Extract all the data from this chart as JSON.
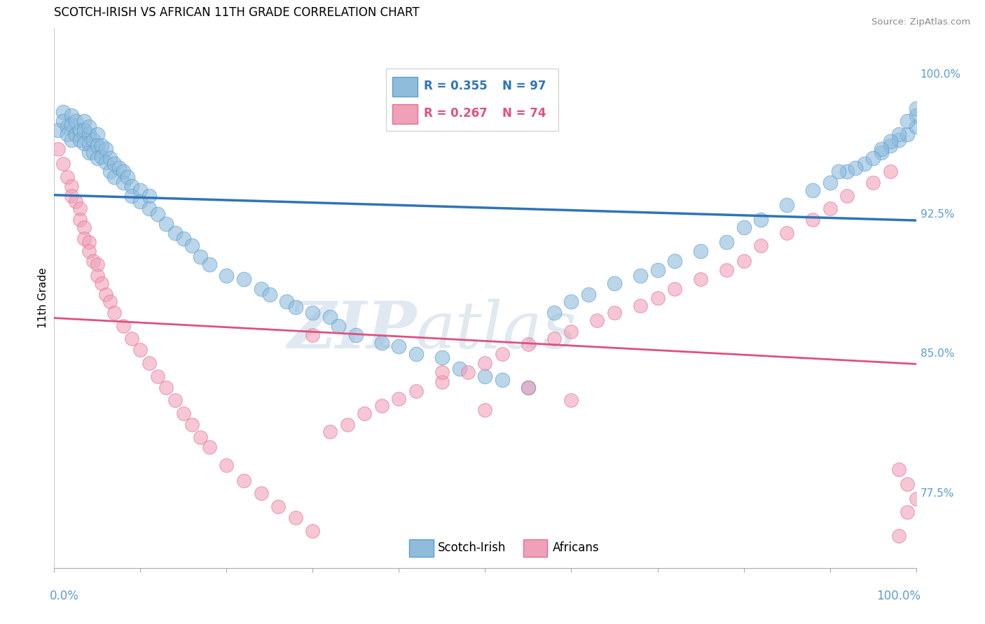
{
  "title": "SCOTCH-IRISH VS AFRICAN 11TH GRADE CORRELATION CHART",
  "source": "Source: ZipAtlas.com",
  "ylabel": "11th Grade",
  "xlim": [
    0.0,
    1.0
  ],
  "ylim": [
    0.735,
    1.025
  ],
  "scotch_irish_color": "#8fbcdb",
  "african_color": "#f0a0b8",
  "scotch_irish_edge": "#5b9bd5",
  "african_edge": "#e07090",
  "trend_blue": "#2E75B6",
  "trend_pink": "#E05080",
  "scotch_irish_R": 0.355,
  "scotch_irish_N": 97,
  "african_R": 0.267,
  "african_N": 74,
  "watermark_zip": "ZIP",
  "watermark_atlas": "atlas",
  "axis_label_color": "#5B9BD5",
  "grid_color": "#cccccc",
  "title_fontsize": 12,
  "right_yticks": [
    1.0,
    0.925,
    0.85,
    0.775
  ],
  "right_ytick_labels": [
    "100.0%",
    "92.5%",
    "85.0%",
    "77.5%"
  ],
  "scotch_x": [
    0.005,
    0.01,
    0.01,
    0.015,
    0.015,
    0.02,
    0.02,
    0.02,
    0.025,
    0.025,
    0.03,
    0.03,
    0.035,
    0.035,
    0.035,
    0.04,
    0.04,
    0.04,
    0.04,
    0.045,
    0.045,
    0.05,
    0.05,
    0.05,
    0.055,
    0.055,
    0.06,
    0.06,
    0.065,
    0.065,
    0.07,
    0.07,
    0.075,
    0.08,
    0.08,
    0.085,
    0.09,
    0.09,
    0.1,
    0.1,
    0.11,
    0.11,
    0.12,
    0.13,
    0.14,
    0.15,
    0.16,
    0.17,
    0.18,
    0.2,
    0.22,
    0.24,
    0.25,
    0.27,
    0.28,
    0.3,
    0.32,
    0.33,
    0.35,
    0.38,
    0.4,
    0.42,
    0.45,
    0.47,
    0.5,
    0.52,
    0.55,
    0.58,
    0.6,
    0.62,
    0.65,
    0.68,
    0.7,
    0.72,
    0.75,
    0.78,
    0.8,
    0.82,
    0.85,
    0.88,
    0.9,
    0.92,
    0.94,
    0.96,
    0.97,
    0.98,
    0.99,
    1.0,
    1.0,
    1.0,
    0.99,
    0.98,
    0.97,
    0.96,
    0.95,
    0.93,
    0.91
  ],
  "scotch_y": [
    0.97,
    0.98,
    0.975,
    0.972,
    0.968,
    0.978,
    0.973,
    0.965,
    0.975,
    0.968,
    0.97,
    0.965,
    0.975,
    0.97,
    0.963,
    0.968,
    0.963,
    0.958,
    0.972,
    0.965,
    0.958,
    0.968,
    0.962,
    0.955,
    0.962,
    0.956,
    0.96,
    0.953,
    0.955,
    0.948,
    0.952,
    0.945,
    0.95,
    0.948,
    0.942,
    0.945,
    0.94,
    0.935,
    0.938,
    0.932,
    0.935,
    0.928,
    0.925,
    0.92,
    0.915,
    0.912,
    0.908,
    0.902,
    0.898,
    0.892,
    0.89,
    0.885,
    0.882,
    0.878,
    0.875,
    0.872,
    0.87,
    0.865,
    0.86,
    0.856,
    0.854,
    0.85,
    0.848,
    0.842,
    0.838,
    0.836,
    0.832,
    0.872,
    0.878,
    0.882,
    0.888,
    0.892,
    0.895,
    0.9,
    0.905,
    0.91,
    0.918,
    0.922,
    0.93,
    0.938,
    0.942,
    0.948,
    0.952,
    0.958,
    0.962,
    0.965,
    0.968,
    0.972,
    0.978,
    0.982,
    0.975,
    0.968,
    0.964,
    0.96,
    0.955,
    0.95,
    0.948
  ],
  "african_x": [
    0.005,
    0.01,
    0.015,
    0.02,
    0.02,
    0.025,
    0.03,
    0.03,
    0.035,
    0.035,
    0.04,
    0.04,
    0.045,
    0.05,
    0.05,
    0.055,
    0.06,
    0.065,
    0.07,
    0.08,
    0.09,
    0.1,
    0.11,
    0.12,
    0.13,
    0.14,
    0.15,
    0.16,
    0.17,
    0.18,
    0.2,
    0.22,
    0.24,
    0.26,
    0.28,
    0.3,
    0.32,
    0.34,
    0.36,
    0.38,
    0.4,
    0.42,
    0.45,
    0.48,
    0.5,
    0.52,
    0.55,
    0.58,
    0.6,
    0.63,
    0.65,
    0.68,
    0.7,
    0.72,
    0.75,
    0.78,
    0.8,
    0.82,
    0.85,
    0.88,
    0.9,
    0.92,
    0.95,
    0.97,
    0.98,
    0.99,
    1.0,
    0.99,
    0.98,
    0.5,
    0.3,
    0.45,
    0.55,
    0.6
  ],
  "african_y": [
    0.96,
    0.952,
    0.945,
    0.94,
    0.935,
    0.932,
    0.928,
    0.922,
    0.918,
    0.912,
    0.91,
    0.905,
    0.9,
    0.898,
    0.892,
    0.888,
    0.882,
    0.878,
    0.872,
    0.865,
    0.858,
    0.852,
    0.845,
    0.838,
    0.832,
    0.825,
    0.818,
    0.812,
    0.805,
    0.8,
    0.79,
    0.782,
    0.775,
    0.768,
    0.762,
    0.755,
    0.808,
    0.812,
    0.818,
    0.822,
    0.826,
    0.83,
    0.835,
    0.84,
    0.845,
    0.85,
    0.855,
    0.858,
    0.862,
    0.868,
    0.872,
    0.876,
    0.88,
    0.885,
    0.89,
    0.895,
    0.9,
    0.908,
    0.915,
    0.922,
    0.928,
    0.935,
    0.942,
    0.948,
    0.752,
    0.765,
    0.772,
    0.78,
    0.788,
    0.82,
    0.86,
    0.84,
    0.832,
    0.825
  ]
}
